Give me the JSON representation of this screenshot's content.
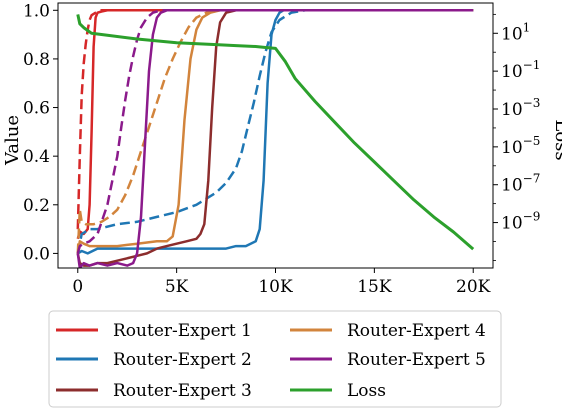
{
  "chart_data": {
    "type": "line",
    "title": "",
    "xlabel": "",
    "ylabel_left": "Value",
    "ylabel_right": "Loss",
    "x_ticks": [
      0,
      5000,
      10000,
      15000,
      20000
    ],
    "x_tick_labels": [
      "0",
      "5K",
      "10K",
      "15K",
      "20K"
    ],
    "xlim": [
      -1000,
      21000
    ],
    "ylim_left": [
      -0.06,
      1.03
    ],
    "y_ticks_left": [
      0.0,
      0.2,
      0.4,
      0.6,
      0.8,
      1.0
    ],
    "y_tick_labels_left": [
      "0.0",
      "0.2",
      "0.4",
      "0.6",
      "0.8",
      "1.0"
    ],
    "right_axis_scale": "log",
    "ylim_right_log10": [
      -11.4,
      2.6
    ],
    "y_ticks_right_log10": [
      1,
      -1,
      -3,
      -5,
      -7,
      -9
    ],
    "grid": false,
    "legend_position": "bottom, outside plot, two columns",
    "legend_columns": [
      [
        "Router-Expert 1",
        "Router-Expert 2",
        "Router-Expert 3"
      ],
      [
        "Router-Expert 4",
        "Router-Expert 5",
        "Loss"
      ]
    ],
    "series": [
      {
        "name": "Router-Expert 1",
        "color": "#d62728",
        "style": "solid",
        "x": [
          0,
          100,
          300,
          500,
          600,
          700,
          800,
          900,
          1000,
          1200,
          1500,
          2000,
          20000
        ],
        "y": [
          0.06,
          0.09,
          0.08,
          0.1,
          0.2,
          0.5,
          0.85,
          0.97,
          0.99,
          0.995,
          1.0,
          1.0,
          1.0
        ]
      },
      {
        "name": "Router-Expert 1",
        "color": "#d62728",
        "style": "dashed",
        "x": [
          0,
          100,
          200,
          300,
          400,
          500,
          600,
          700,
          900,
          1200,
          2000,
          20000
        ],
        "y": [
          0.1,
          0.4,
          0.65,
          0.78,
          0.86,
          0.92,
          0.96,
          0.98,
          0.99,
          1.0,
          1.0,
          1.0
        ]
      },
      {
        "name": "Router-Expert 2",
        "color": "#1f77b4",
        "style": "solid",
        "x": [
          0,
          200,
          500,
          1000,
          2000,
          3000,
          4000,
          5000,
          6000,
          7000,
          7500,
          8000,
          8500,
          9000,
          9200,
          9400,
          9600,
          9800,
          10000,
          10200,
          10400,
          11000,
          20000
        ],
        "y": [
          0.0,
          0.01,
          0.0,
          0.02,
          0.02,
          0.02,
          0.02,
          0.02,
          0.02,
          0.02,
          0.02,
          0.03,
          0.03,
          0.05,
          0.1,
          0.3,
          0.7,
          0.9,
          0.96,
          0.99,
          1.0,
          1.0,
          1.0
        ]
      },
      {
        "name": "Router-Expert 2",
        "color": "#1f77b4",
        "style": "dashed",
        "x": [
          0,
          200,
          600,
          1000,
          2000,
          3000,
          4000,
          5000,
          6000,
          7000,
          7500,
          8000,
          8300,
          8600,
          8900,
          9200,
          9500,
          9800,
          10200,
          10800,
          11500,
          20000
        ],
        "y": [
          0.0,
          0.08,
          0.1,
          0.1,
          0.12,
          0.13,
          0.15,
          0.17,
          0.2,
          0.25,
          0.29,
          0.35,
          0.42,
          0.52,
          0.62,
          0.73,
          0.83,
          0.91,
          0.96,
          0.99,
          1.0,
          1.0
        ]
      },
      {
        "name": "Router-Expert 3",
        "color": "#8c2d2d",
        "style": "solid",
        "x": [
          0,
          100,
          300,
          600,
          1000,
          1500,
          2000,
          2500,
          3000,
          3500,
          4000,
          4500,
          5000,
          5500,
          6000,
          6200,
          6400,
          6600,
          6800,
          7000,
          7200,
          7500,
          8000,
          20000
        ],
        "y": [
          0.0,
          -0.04,
          -0.05,
          -0.05,
          -0.04,
          -0.04,
          -0.03,
          -0.02,
          -0.01,
          0.0,
          0.02,
          0.03,
          0.04,
          0.05,
          0.06,
          0.08,
          0.12,
          0.3,
          0.6,
          0.85,
          0.95,
          0.99,
          1.0,
          1.0
        ]
      },
      {
        "name": "Router-Expert 4",
        "color": "#d2843c",
        "style": "solid",
        "x": [
          0,
          100,
          300,
          600,
          1000,
          1500,
          2000,
          3000,
          4000,
          4500,
          4800,
          5100,
          5400,
          5700,
          6000,
          6300,
          6700,
          7200,
          8000,
          20000
        ],
        "y": [
          0.0,
          0.05,
          0.04,
          0.03,
          0.03,
          0.03,
          0.03,
          0.04,
          0.05,
          0.05,
          0.07,
          0.2,
          0.55,
          0.8,
          0.92,
          0.97,
          0.99,
          1.0,
          1.0,
          1.0
        ]
      },
      {
        "name": "Router-Expert 4",
        "color": "#d2843c",
        "style": "dashed",
        "x": [
          0,
          100,
          200,
          400,
          800,
          1200,
          1600,
          2000,
          2400,
          2800,
          3200,
          3600,
          4000,
          4400,
          4800,
          5200,
          5600,
          6000,
          6500,
          7200,
          20000
        ],
        "y": [
          0.0,
          0.18,
          0.13,
          0.12,
          0.12,
          0.13,
          0.15,
          0.18,
          0.24,
          0.32,
          0.42,
          0.52,
          0.62,
          0.72,
          0.8,
          0.87,
          0.93,
          0.97,
          0.99,
          1.0,
          1.0
        ]
      },
      {
        "name": "Router-Expert 5",
        "color": "#8b1a8b",
        "style": "solid",
        "x": [
          0,
          100,
          300,
          600,
          1000,
          1500,
          2000,
          2500,
          2800,
          3000,
          3200,
          3400,
          3600,
          3800,
          4000,
          4200,
          4500,
          5000,
          20000
        ],
        "y": [
          0.0,
          -0.06,
          -0.04,
          -0.05,
          -0.04,
          -0.05,
          -0.04,
          -0.05,
          -0.04,
          0.0,
          0.15,
          0.45,
          0.75,
          0.9,
          0.97,
          0.99,
          1.0,
          1.0,
          1.0
        ]
      },
      {
        "name": "Router-Expert 5",
        "color": "#8b1a8b",
        "style": "dashed",
        "x": [
          0,
          100,
          300,
          600,
          1000,
          1500,
          2000,
          2200,
          2400,
          2600,
          2800,
          3000,
          3200,
          3500,
          3800,
          4200,
          20000
        ],
        "y": [
          0.0,
          0.03,
          0.04,
          0.05,
          0.08,
          0.2,
          0.4,
          0.52,
          0.63,
          0.73,
          0.81,
          0.88,
          0.93,
          0.97,
          0.99,
          1.0,
          1.0
        ]
      },
      {
        "name": "Loss",
        "color": "#2ca02c",
        "style": "solid",
        "axis": "right",
        "scale": "log",
        "x": [
          0,
          100,
          300,
          700,
          1500,
          3000,
          5000,
          7000,
          8000,
          9000,
          9500,
          10000,
          10500,
          11000,
          12000,
          13000,
          14000,
          15000,
          16000,
          17000,
          18000,
          19000,
          20000
        ],
        "y_log10": [
          2.0,
          1.5,
          1.3,
          1.0,
          0.9,
          0.7,
          0.5,
          0.4,
          0.35,
          0.3,
          0.25,
          0.2,
          -0.5,
          -1.4,
          -2.6,
          -3.7,
          -4.8,
          -5.8,
          -6.8,
          -7.8,
          -8.7,
          -9.5,
          -10.4
        ]
      }
    ]
  }
}
